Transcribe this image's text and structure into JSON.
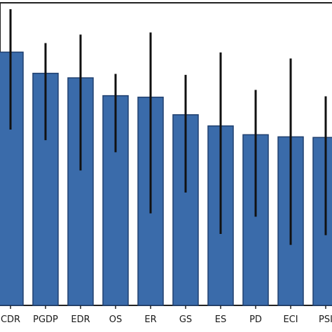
{
  "chart_data": {
    "type": "bar",
    "categories": [
      "CDR",
      "PGDP",
      "EDR",
      "OS",
      "ER",
      "GS",
      "ES",
      "PD",
      "ECI",
      "PSI"
    ],
    "values": [
      0.837,
      0.767,
      0.752,
      0.693,
      0.688,
      0.63,
      0.593,
      0.564,
      0.557,
      0.555
    ],
    "error_low": [
      0.581,
      0.546,
      0.446,
      0.506,
      0.304,
      0.373,
      0.236,
      0.293,
      0.2,
      0.232
    ],
    "error_high": [
      0.979,
      0.867,
      0.895,
      0.765,
      0.902,
      0.762,
      0.836,
      0.712,
      0.816,
      0.691
    ],
    "title": "",
    "xlabel": "",
    "ylabel": "",
    "ylim": [
      0,
      1.0
    ],
    "grid": false,
    "legend": "none",
    "bar_color": "#3a6baa",
    "bar_edge_color": "#1f3f6e",
    "error_color": "#111111"
  }
}
